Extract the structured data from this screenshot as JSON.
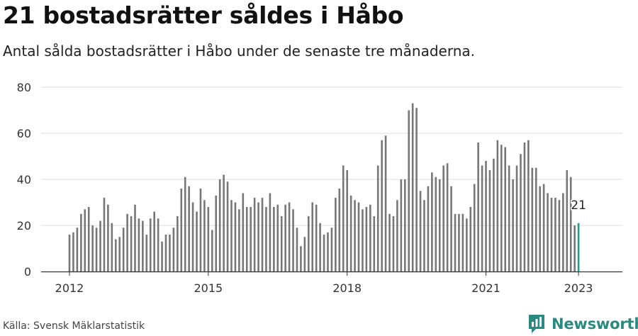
{
  "header": {
    "title": "21 bostadsrätter såldes i Håbo",
    "subtitle": "Antal sålda bostadsrätter i Håbo under de senaste tre månaderna."
  },
  "footer": {
    "source": "Källa: Svensk Mäklarstatistik",
    "brand": "Newsworthy"
  },
  "colors": {
    "bar": "#777777",
    "highlight": "#1a9e8f",
    "grid": "#dddddd",
    "axis": "#333333",
    "brand": "#2a8a80"
  },
  "chart_data": {
    "type": "bar",
    "title": "21 bostadsrätter såldes i Håbo",
    "xlabel": "",
    "ylabel": "",
    "ylim": [
      0,
      80
    ],
    "yticks": [
      0,
      20,
      40,
      60,
      80
    ],
    "grid": true,
    "start": "2012-01",
    "xticks": [
      {
        "label": "2012",
        "index": 0
      },
      {
        "label": "2015",
        "index": 36
      },
      {
        "label": "2018",
        "index": 72
      },
      {
        "label": "2021",
        "index": 108
      },
      {
        "label": "2023",
        "index": 132
      }
    ],
    "highlight_label": "21",
    "values": [
      16,
      17,
      19,
      25,
      27,
      28,
      20,
      19,
      22,
      32,
      29,
      21,
      14,
      15,
      19,
      25,
      24,
      29,
      23,
      22,
      16,
      23,
      26,
      23,
      13,
      16,
      16,
      19,
      24,
      36,
      41,
      37,
      30,
      26,
      36,
      31,
      28,
      18,
      33,
      40,
      42,
      39,
      31,
      30,
      27,
      34,
      28,
      28,
      32,
      30,
      32,
      28,
      34,
      28,
      29,
      24,
      29,
      30,
      27,
      19,
      11,
      15,
      24,
      30,
      29,
      21,
      16,
      17,
      19,
      32,
      36,
      46,
      44,
      33,
      31,
      30,
      27,
      28,
      29,
      24,
      46,
      57,
      59,
      25,
      24,
      31,
      40,
      40,
      70,
      73,
      71,
      35,
      31,
      37,
      43,
      41,
      40,
      46,
      47,
      37,
      25,
      25,
      25,
      23,
      28,
      38,
      56,
      46,
      48,
      44,
      49,
      57,
      55,
      54,
      46,
      40,
      46,
      51,
      56,
      57,
      45,
      45,
      37,
      38,
      34,
      32,
      32,
      31,
      34,
      44,
      41,
      20,
      21
    ]
  }
}
